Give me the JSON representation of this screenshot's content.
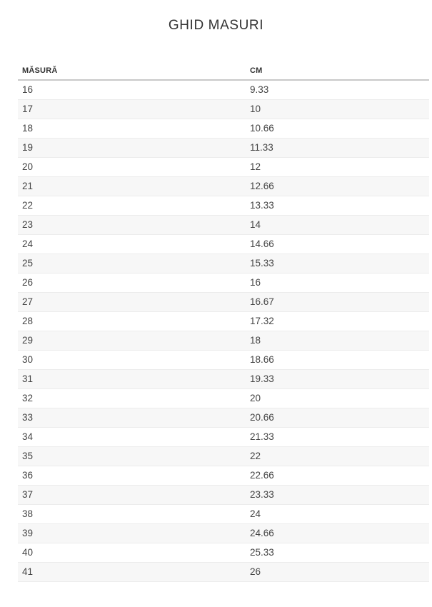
{
  "page": {
    "title": "GHID MASURI"
  },
  "table": {
    "columns": [
      "MĂSURĂ",
      "CM"
    ],
    "rows": [
      [
        "16",
        "9.33"
      ],
      [
        "17",
        "10"
      ],
      [
        "18",
        "10.66"
      ],
      [
        "19",
        "11.33"
      ],
      [
        "20",
        "12"
      ],
      [
        "21",
        "12.66"
      ],
      [
        "22",
        "13.33"
      ],
      [
        "23",
        "14"
      ],
      [
        "24",
        "14.66"
      ],
      [
        "25",
        "15.33"
      ],
      [
        "26",
        "16"
      ],
      [
        "27",
        "16.67"
      ],
      [
        "28",
        "17.32"
      ],
      [
        "29",
        "18"
      ],
      [
        "30",
        "18.66"
      ],
      [
        "31",
        "19.33"
      ],
      [
        "32",
        "20"
      ],
      [
        "33",
        "20.66"
      ],
      [
        "34",
        "21.33"
      ],
      [
        "35",
        "22"
      ],
      [
        "36",
        "22.66"
      ],
      [
        "37",
        "23.33"
      ],
      [
        "38",
        "24"
      ],
      [
        "39",
        "24.66"
      ],
      [
        "40",
        "25.33"
      ],
      [
        "41",
        "26"
      ]
    ]
  },
  "colors": {
    "stripe": "#f7f7f7",
    "row_border": "#ececec",
    "header_border": "#c9c9c9",
    "text": "#444444",
    "heading": "#333333",
    "bg": "#ffffff"
  }
}
